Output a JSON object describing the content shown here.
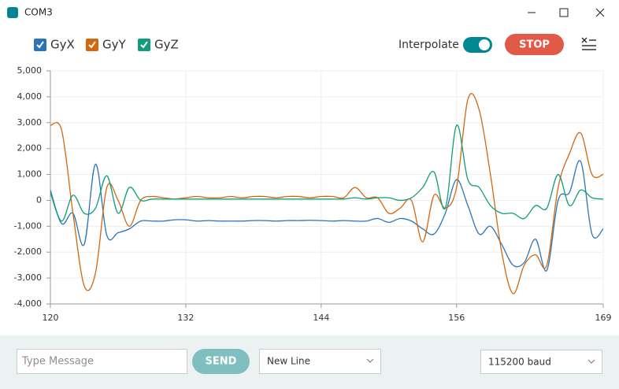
{
  "window": {
    "title": "COM3"
  },
  "toolbar": {
    "interpolate": "Interpolate",
    "stop": "STOP"
  },
  "footer": {
    "message_placeholder": "Type Message",
    "send": "SEND",
    "line_ending": "New Line",
    "baud": "115200 baud"
  },
  "chart_data": {
    "type": "line",
    "x": [
      120,
      121,
      122,
      123,
      124,
      125,
      126,
      127,
      128,
      129,
      130,
      131,
      132,
      133,
      134,
      135,
      136,
      137,
      138,
      139,
      140,
      141,
      142,
      143,
      144,
      145,
      146,
      147,
      148,
      149,
      150,
      151,
      152,
      153,
      154,
      155,
      156,
      157,
      158,
      159,
      160,
      161,
      162,
      163,
      164,
      165,
      166,
      167,
      168,
      169
    ],
    "series": [
      {
        "name": "GyX",
        "color": "#2a74b8",
        "values": [
          400,
          -900,
          -500,
          -1700,
          1400,
          -1350,
          -1250,
          -1100,
          -800,
          -800,
          -800,
          -750,
          -750,
          -800,
          -780,
          -800,
          -800,
          -800,
          -780,
          -780,
          -800,
          -780,
          -780,
          -770,
          -780,
          -800,
          -780,
          -800,
          -800,
          -700,
          -850,
          -700,
          -800,
          -1100,
          -1300,
          -500,
          800,
          -200,
          -1300,
          -1000,
          -1700,
          -2500,
          -2400,
          -1500,
          -2700,
          0,
          300,
          1500,
          -1300,
          -1100
        ]
      },
      {
        "name": "GyY",
        "color": "#d4660d",
        "values": [
          2900,
          2700,
          -500,
          -3300,
          -2800,
          500,
          0,
          -1000,
          0,
          150,
          100,
          50,
          100,
          150,
          100,
          100,
          150,
          100,
          150,
          150,
          100,
          150,
          150,
          100,
          150,
          150,
          100,
          500,
          100,
          100,
          -500,
          -300,
          0,
          -1600,
          200,
          -300,
          500,
          3900,
          3500,
          1000,
          -2000,
          -3600,
          -2500,
          -2100,
          -2500,
          500,
          1800,
          2600,
          1000,
          1000
        ]
      },
      {
        "name": "GyZ",
        "color": "#109d7a",
        "values": [
          300,
          -800,
          200,
          -500,
          -300,
          950,
          -500,
          500,
          0,
          50,
          50,
          50,
          50,
          50,
          50,
          50,
          50,
          50,
          50,
          50,
          50,
          50,
          50,
          50,
          50,
          50,
          50,
          100,
          50,
          100,
          100,
          0,
          100,
          500,
          1100,
          -300,
          2900,
          800,
          500,
          -200,
          -500,
          -500,
          -700,
          -200,
          -300,
          1000,
          -200,
          400,
          100,
          50
        ]
      }
    ],
    "xlim": [
      120,
      169
    ],
    "xticks": [
      120,
      132,
      144,
      156,
      169
    ],
    "ylim": [
      -4000,
      5000
    ],
    "yticks": [
      {
        "value": -4000,
        "label": "-4,000"
      },
      {
        "value": -3000,
        "label": "-3,000"
      },
      {
        "value": -2000,
        "label": "-2,000"
      },
      {
        "value": -1000,
        "label": "-1,000"
      },
      0,
      {
        "value": 1000,
        "label": "1,000"
      },
      {
        "value": 2000,
        "label": "2,000"
      },
      {
        "value": 3000,
        "label": "3,000"
      },
      {
        "value": 4000,
        "label": "4,000"
      },
      {
        "value": 5000,
        "label": "5,000"
      }
    ],
    "grid": true
  }
}
